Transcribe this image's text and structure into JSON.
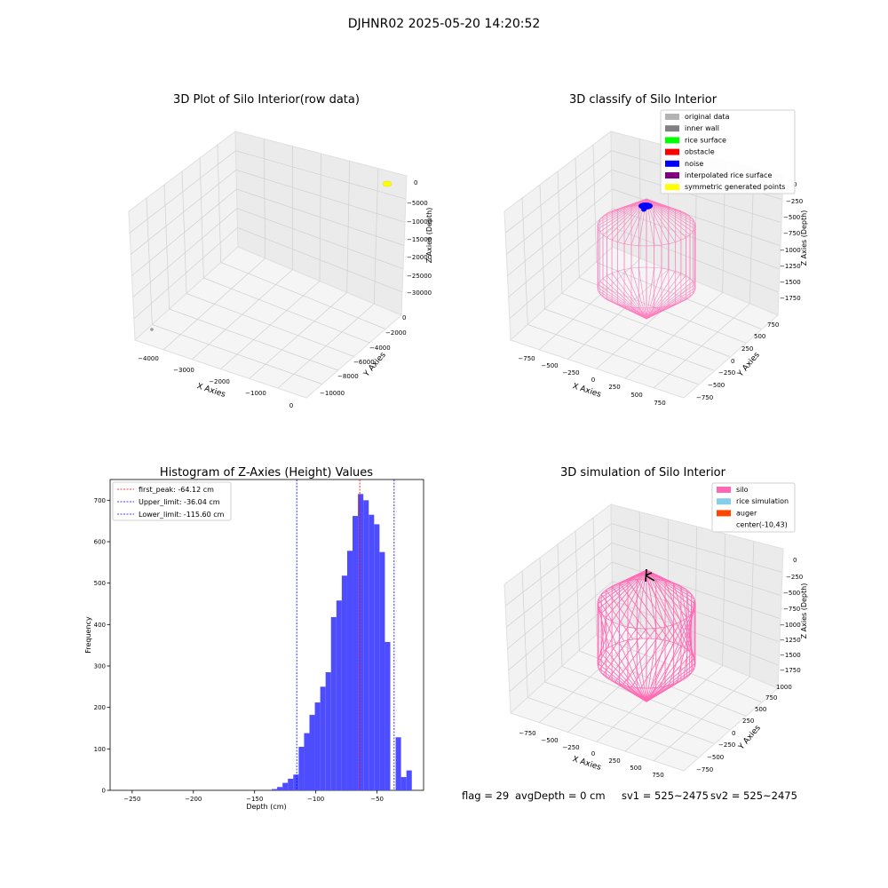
{
  "suptitle": "DJHNR02 2025-05-20 14:20:52",
  "footer": {
    "flag": "flag = 29",
    "avg_depth": "avgDepth = 0 cm",
    "sv1": "sv1 = 525~2475",
    "sv2": "sv2 = 525~2475"
  },
  "colors": {
    "hist_bar": "#4d4dff",
    "silo_wire": "#ff69b4",
    "pane": "#f2f2f2",
    "grid": "#cccccc"
  },
  "chart_data": [
    {
      "type": "scatter3d",
      "title": "3D Plot of Silo Interior(row data)",
      "xlabel": "X Axies",
      "ylabel": "Y Axies",
      "zlabel": "Z Axies (Depth)",
      "xticks": [
        "−4000",
        "−3000",
        "−2000",
        "−1000",
        "0"
      ],
      "yticks": [
        "−10000",
        "−8000",
        "−6000",
        "−4000",
        "−2000",
        "0"
      ],
      "zticks": [
        "0",
        "−5000",
        "−10000",
        "−15000",
        "−20000",
        "−25000",
        "−30000"
      ],
      "clusters": [
        {
          "name": "yellow points",
          "color": "#ffff00",
          "x": 0,
          "y": 0,
          "z": 0
        },
        {
          "name": "gray point",
          "color": "#999999",
          "x": -4300,
          "y": -10500,
          "z": -32000
        }
      ]
    },
    {
      "type": "scatter3d",
      "title": "3D classify of Silo Interior",
      "xlabel": "X Axies",
      "ylabel": "Y Axies",
      "zlabel": "Z Axies (Depth)",
      "xticks": [
        "−750",
        "−500",
        "−250",
        "0",
        "250",
        "500",
        "750"
      ],
      "yticks": [
        "−750",
        "−500",
        "−250",
        "0",
        "250",
        "500",
        "750"
      ],
      "zticks": [
        "0",
        "−250",
        "−500",
        "−750",
        "−1000",
        "−1250",
        "−1500",
        "−1750"
      ],
      "legend": [
        {
          "label": "original data",
          "color": "#b3b3b3"
        },
        {
          "label": "inner wall",
          "color": "#808080"
        },
        {
          "label": "rice surface",
          "color": "#00ff00"
        },
        {
          "label": "obstacle",
          "color": "#ff0000"
        },
        {
          "label": "noise",
          "color": "#0000ff"
        },
        {
          "label": "interpolated rice surface",
          "color": "#800080"
        },
        {
          "label": "symmetric generated points",
          "color": "#ffff00"
        }
      ],
      "legend_position": "top-right"
    },
    {
      "type": "bar",
      "title": "Histogram of Z-Axies (Height) Values",
      "xlabel": "Depth (cm)",
      "ylabel": "Frequency",
      "xlim": [
        -268,
        -12
      ],
      "ylim": [
        0,
        750
      ],
      "xticks": [
        -250,
        -200,
        -150,
        -100,
        -50
      ],
      "yticks": [
        0,
        100,
        200,
        300,
        400,
        500,
        600,
        700
      ],
      "bin_width": 4.4,
      "bin_starts": [
        -136,
        -131.6,
        -127.2,
        -122.8,
        -118.4,
        -114,
        -109.6,
        -105.2,
        -100.8,
        -96.4,
        -92,
        -87.6,
        -83.2,
        -78.8,
        -74.4,
        -70,
        -65.6,
        -61.2,
        -56.8,
        -52.4,
        -48,
        -43.6,
        -39.2,
        -34.8,
        -30.4,
        -26
      ],
      "values": [
        3,
        8,
        18,
        28,
        38,
        105,
        138,
        182,
        212,
        250,
        285,
        418,
        458,
        518,
        578,
        662,
        715,
        700,
        665,
        642,
        575,
        358,
        0,
        128,
        32,
        48
      ],
      "legend": [
        "first_peak: -64.12 cm",
        "Upper_limit: -36.04 cm",
        "Lower_limit: -115.60 cm"
      ],
      "lines": [
        {
          "x": -64.12,
          "color": "#ff0000"
        },
        {
          "x": -36.04,
          "color": "#0000ff"
        },
        {
          "x": -115.6,
          "color": "#0000ff"
        }
      ],
      "legend_position": "top-left"
    },
    {
      "type": "scatter3d",
      "title": "3D simulation of Silo Interior",
      "xlabel": "X Axies",
      "ylabel": "Y Axies",
      "zlabel": "Z Axies (Depth)",
      "xticks": [
        "−750",
        "−500",
        "−250",
        "0",
        "250",
        "500",
        "750"
      ],
      "yticks": [
        "−750",
        "−500",
        "−250",
        "0",
        "250",
        "500",
        "750",
        "1000"
      ],
      "zticks": [
        "0",
        "−250",
        "−500",
        "−750",
        "−1000",
        "−1250",
        "−1500",
        "−1750"
      ],
      "legend": [
        {
          "label": "silo",
          "color": "#ff69b4"
        },
        {
          "label": "rice simulation",
          "color": "#87ceeb"
        },
        {
          "label": "auger",
          "color": "#ff4500"
        },
        {
          "label": "center(-10,43)",
          "color": ""
        }
      ],
      "legend_position": "top-right"
    }
  ]
}
